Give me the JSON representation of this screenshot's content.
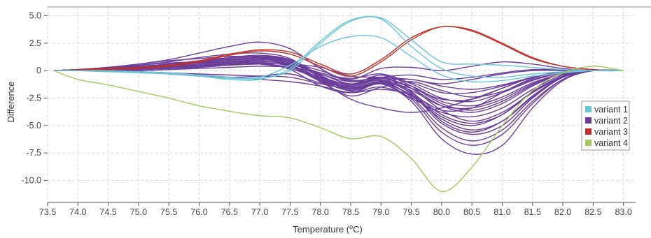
{
  "chart_data": {
    "type": "line",
    "xlabel": "Temperature (",
    "xlabel_super": "o",
    "xlabel_suffix": "C)",
    "ylabel": "Difference",
    "xlim": [
      73.5,
      83.2
    ],
    "ylim": [
      -12,
      5.8
    ],
    "grid": true,
    "legend_position": "right",
    "x_ticks": [
      73.5,
      74.0,
      74.5,
      75.0,
      75.5,
      76.0,
      76.5,
      77.0,
      77.5,
      78.0,
      78.5,
      79.0,
      79.5,
      80.0,
      80.5,
      81.0,
      81.5,
      82.0,
      82.5,
      83.0
    ],
    "x_tick_labels": [
      "73.5",
      "74.0",
      "74.5",
      "75.0",
      "75.5",
      "76.0",
      "76.5",
      "77.0",
      "77.5",
      "78.0",
      "78.5",
      "79.0",
      "79.5",
      "80.0",
      "80.5",
      "81.0",
      "81.5",
      "82.0",
      "82.5",
      "83.0"
    ],
    "y_ticks": [
      5.0,
      2.5,
      0,
      -2.5,
      -5.0,
      -7.5,
      -10.0
    ],
    "y_tick_labels": [
      "5.0",
      "2.5",
      "0",
      "-2.5",
      "-5.0",
      "-7.5",
      "-10.0"
    ],
    "x": [
      73.6,
      74.0,
      74.5,
      75.0,
      75.5,
      76.0,
      76.5,
      77.0,
      77.5,
      78.0,
      78.5,
      79.0,
      79.5,
      80.0,
      80.5,
      81.0,
      81.5,
      82.0,
      82.5,
      83.0
    ],
    "series": [
      {
        "name": "variant 1",
        "color": "#6cc6d6",
        "curves": [
          [
            0,
            0,
            -0.1,
            -0.2,
            -0.3,
            -0.5,
            -0.7,
            -0.7,
            0,
            2.5,
            4.5,
            4.8,
            2.8,
            0.8,
            0.6,
            0.5,
            0.3,
            0.1,
            0,
            0
          ],
          [
            0,
            0,
            0,
            -0.1,
            -0.2,
            -0.4,
            -0.6,
            -0.6,
            0.5,
            2.2,
            3.1,
            3.0,
            1.3,
            -0.4,
            -1.0,
            -0.9,
            -0.5,
            -0.2,
            0,
            0
          ],
          [
            0,
            0,
            -0.1,
            -0.1,
            -0.3,
            -0.5,
            -0.8,
            -0.8,
            0.2,
            2.7,
            4.6,
            4.7,
            2.2,
            0.2,
            -0.5,
            -0.6,
            -0.3,
            -0.1,
            0,
            0
          ]
        ]
      },
      {
        "name": "variant 2",
        "color": "#6a3d9a",
        "curves": [
          [
            0,
            0.1,
            0.3,
            0.6,
            1.0,
            1.6,
            2.2,
            2.6,
            2.0,
            0.2,
            -1.0,
            -0.6,
            -1.6,
            -3.6,
            -4.6,
            -3.8,
            -2.0,
            -0.6,
            0,
            0
          ],
          [
            0,
            0.1,
            0.2,
            0.5,
            0.8,
            1.2,
            1.5,
            1.6,
            1.1,
            -0.6,
            -1.7,
            -1.0,
            -2.4,
            -5.2,
            -6.4,
            -5.4,
            -2.8,
            -0.8,
            0,
            0
          ],
          [
            0,
            0.1,
            0.2,
            0.4,
            0.6,
            0.9,
            1.2,
            1.4,
            1.0,
            -0.5,
            -1.5,
            -1.2,
            -2.8,
            -6.2,
            -7.6,
            -6.8,
            -3.4,
            -0.9,
            0,
            0
          ],
          [
            0,
            0,
            0.1,
            0.2,
            0.4,
            0.6,
            0.8,
            1.0,
            0.7,
            -0.2,
            -0.7,
            -0.3,
            -1.2,
            -2.5,
            -2.8,
            -2.0,
            -0.9,
            -0.2,
            0,
            0
          ],
          [
            0,
            0,
            0,
            -0.1,
            -0.2,
            -0.4,
            -0.6,
            -0.8,
            -1.0,
            -1.4,
            -2.0,
            -1.7,
            -2.2,
            -3.6,
            -3.4,
            -2.0,
            -0.7,
            -0.1,
            0,
            0
          ],
          [
            0,
            0.1,
            0.3,
            0.6,
            0.9,
            1.1,
            1.3,
            1.2,
            0.4,
            -1.0,
            -2.3,
            -1.5,
            -1.0,
            -1.8,
            -2.4,
            -1.9,
            -0.8,
            -0.2,
            0,
            0
          ],
          [
            0,
            0,
            0.1,
            0.3,
            0.5,
            0.7,
            0.9,
            1.1,
            0.8,
            -0.8,
            -1.8,
            -1.2,
            -2.2,
            -4.2,
            -5.0,
            -4.0,
            -1.9,
            -0.5,
            0,
            0
          ],
          [
            0,
            0,
            0,
            -0.1,
            -0.3,
            -0.5,
            -0.6,
            -0.5,
            -0.3,
            -1.1,
            -1.3,
            -0.4,
            -1.4,
            -3.0,
            -3.6,
            -2.8,
            -1.3,
            -0.3,
            0,
            0
          ],
          [
            0,
            0.1,
            0.2,
            0.3,
            0.5,
            0.8,
            1.0,
            1.2,
            0.9,
            -0.4,
            -1.9,
            -1.5,
            -2.6,
            -5.6,
            -6.8,
            -5.8,
            -3.0,
            -0.8,
            0,
            0
          ],
          [
            0,
            0,
            0.1,
            0.2,
            0.3,
            0.5,
            0.7,
            0.8,
            0.6,
            -0.3,
            -1.2,
            -0.8,
            -1.9,
            -4.6,
            -5.6,
            -4.6,
            -2.3,
            -0.6,
            0,
            0
          ],
          [
            0,
            0.1,
            0.3,
            0.5,
            0.7,
            0.8,
            0.8,
            0.6,
            0.2,
            -0.8,
            -1.6,
            -1.0,
            -1.4,
            -2.8,
            -3.2,
            -2.4,
            -1.1,
            -0.3,
            0,
            0
          ],
          [
            0,
            0,
            0,
            0.1,
            0.2,
            0.3,
            0.5,
            0.7,
            0.4,
            -0.9,
            -2.6,
            -3.4,
            -3.8,
            -3.4,
            -2.6,
            -1.6,
            -0.6,
            -0.1,
            0,
            0
          ],
          [
            0,
            0,
            0.1,
            0.2,
            0.4,
            0.6,
            0.9,
            1.2,
            0.9,
            -0.6,
            -1.4,
            -0.9,
            -2.0,
            -4.0,
            -4.8,
            -4.0,
            -2.0,
            -0.5,
            0,
            0
          ],
          [
            0,
            0,
            0,
            0,
            0.1,
            0.2,
            0.3,
            0.4,
            0.3,
            -0.2,
            -0.9,
            -0.6,
            -0.4,
            -0.8,
            -0.6,
            -0.2,
            0.1,
            0.1,
            0,
            0
          ],
          [
            0,
            0.1,
            0.2,
            0.4,
            0.6,
            0.9,
            1.1,
            1.3,
            1.0,
            -0.4,
            -1.6,
            -1.1,
            -2.3,
            -4.4,
            -5.4,
            -4.6,
            -2.4,
            -0.6,
            0,
            0
          ],
          [
            0,
            0,
            0.1,
            0.2,
            0.4,
            0.5,
            0.6,
            0.6,
            0.3,
            -0.6,
            -1.2,
            -0.7,
            -1.6,
            -3.2,
            -3.8,
            -3.0,
            -1.4,
            -0.3,
            0,
            0
          ],
          [
            0,
            0.1,
            0.2,
            0.3,
            0.5,
            0.7,
            0.8,
            0.7,
            0.1,
            -1.4,
            -2.0,
            -1.0,
            -0.8,
            -1.4,
            -1.7,
            -1.3,
            -0.6,
            -0.1,
            0,
            0
          ],
          [
            0,
            0,
            0.1,
            0.3,
            0.5,
            0.8,
            1.1,
            1.3,
            0.9,
            -0.5,
            -1.3,
            -0.9,
            -2.1,
            -4.8,
            -5.8,
            -5.0,
            -2.5,
            -0.6,
            0,
            0
          ],
          [
            0,
            0,
            0,
            -0.1,
            -0.2,
            -0.3,
            -0.4,
            -0.5,
            -0.6,
            -1.2,
            -1.6,
            -1.2,
            -1.6,
            -2.6,
            -2.6,
            -1.6,
            -0.6,
            -0.1,
            0,
            0
          ],
          [
            0,
            0,
            0.1,
            0.2,
            0.3,
            0.4,
            0.6,
            0.8,
            0.7,
            0.0,
            -0.8,
            0.2,
            0.3,
            0.0,
            0.4,
            0.8,
            0.6,
            0.2,
            0,
            0
          ],
          [
            0,
            0,
            0,
            0.1,
            0.2,
            0.3,
            0.5,
            0.6,
            0.6,
            0.3,
            -0.5,
            -0.6,
            -0.8,
            -1.2,
            -0.8,
            -0.3,
            0.0,
            0.0,
            0,
            0
          ],
          [
            0,
            0.1,
            0.2,
            0.3,
            0.6,
            0.8,
            1.0,
            1.1,
            0.6,
            -0.9,
            -1.8,
            -1.1,
            -2.5,
            -3.8,
            -4.2,
            -3.4,
            -1.7,
            -0.4,
            0,
            0
          ],
          [
            0,
            0,
            0.1,
            0.1,
            0.2,
            0.4,
            0.7,
            1.0,
            0.8,
            -0.3,
            -1.0,
            -0.6,
            -1.1,
            -2.0,
            -2.0,
            -1.4,
            -0.6,
            -0.1,
            0,
            0
          ],
          [
            0,
            0,
            0,
            0.1,
            0.3,
            0.5,
            0.7,
            0.9,
            0.5,
            -0.7,
            -1.5,
            -1.0,
            -1.8,
            -3.2,
            -3.4,
            -2.6,
            -1.2,
            -0.3,
            0,
            0
          ]
        ]
      },
      {
        "name": "variant 3",
        "color": "#c0312b",
        "curves": [
          [
            0,
            0.1,
            0.1,
            0.2,
            0.4,
            0.8,
            1.4,
            1.8,
            1.5,
            0.4,
            -0.5,
            0.8,
            2.8,
            4.0,
            3.6,
            2.4,
            1.1,
            0.4,
            0.1,
            0
          ],
          [
            0,
            0.1,
            0.2,
            0.3,
            0.5,
            0.9,
            1.5,
            1.9,
            1.7,
            0.6,
            -0.3,
            1.0,
            3.0,
            4.0,
            3.7,
            2.5,
            1.2,
            0.4,
            0.1,
            0
          ]
        ]
      },
      {
        "name": "variant 4",
        "color": "#a4c95e",
        "curves": [
          [
            0,
            -0.8,
            -1.3,
            -1.9,
            -2.5,
            -3.2,
            -3.7,
            -4.1,
            -4.3,
            -5.2,
            -6.2,
            -6.0,
            -8.0,
            -11.0,
            -8.8,
            -5.0,
            -1.8,
            -0.2,
            0.4,
            0
          ]
        ]
      }
    ]
  },
  "legend": {
    "items": [
      {
        "label": "variant 1",
        "color": "#6cc6d6"
      },
      {
        "label": "variant 2",
        "color": "#6a3d9a"
      },
      {
        "label": "variant 3",
        "color": "#c0312b"
      },
      {
        "label": "variant 4",
        "color": "#a4c95e"
      }
    ]
  }
}
